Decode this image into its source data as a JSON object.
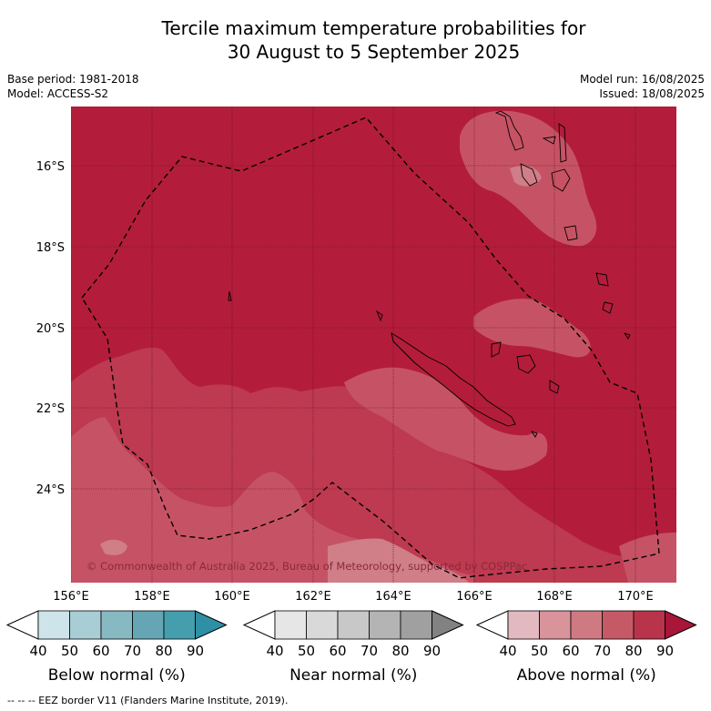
{
  "title_line1": "Tercile maximum temperature probabilities for",
  "title_line2": "30 August to 5 September 2025",
  "base_period": "Base period: 1981-2018",
  "model": "Model: ACCESS-S2",
  "model_run": "Model run: 16/08/2025",
  "issued": "Issued: 18/08/2025",
  "lat_labels": [
    "16°S",
    "18°S",
    "20°S",
    "22°S",
    "24°S"
  ],
  "lon_labels": [
    "156°E",
    "158°E",
    "160°E",
    "162°E",
    "164°E",
    "166°E",
    "168°E",
    "170°E"
  ],
  "copyright": "© Commonwealth of Australia 2025, Bureau of Meteorology, supported by COSPPac",
  "colorbars": [
    {
      "label": "Below normal (%)",
      "ticks": [
        "40",
        "50",
        "60",
        "70",
        "80",
        "90"
      ],
      "colors": [
        "#ffffff",
        "#cce4ea",
        "#a8cdd4",
        "#87b9c3",
        "#66a6b4",
        "#449ead",
        "#2e8fa5"
      ]
    },
    {
      "label": "Near normal (%)",
      "ticks": [
        "40",
        "50",
        "60",
        "70",
        "80",
        "90"
      ],
      "colors": [
        "#ffffff",
        "#e6e6e6",
        "#d9d9d9",
        "#c8c8c8",
        "#b4b4b4",
        "#a0a0a0",
        "#828282"
      ]
    },
    {
      "label": "Above normal (%)",
      "ticks": [
        "40",
        "50",
        "60",
        "70",
        "80",
        "90"
      ],
      "colors": [
        "#ffffff",
        "#e1b9bf",
        "#d8939b",
        "#cf7a82",
        "#c55a66",
        "#b9344a",
        "#a8163a"
      ]
    }
  ],
  "footer": "--  --  -- EEZ border V11 (Flanders Marine Institute, 2019).",
  "field_colors": {
    "c90": "#b31d3b",
    "c80": "#bd3a50",
    "c70": "#c65365",
    "c60": "#d07e88",
    "c50": "#e0bcc2"
  }
}
